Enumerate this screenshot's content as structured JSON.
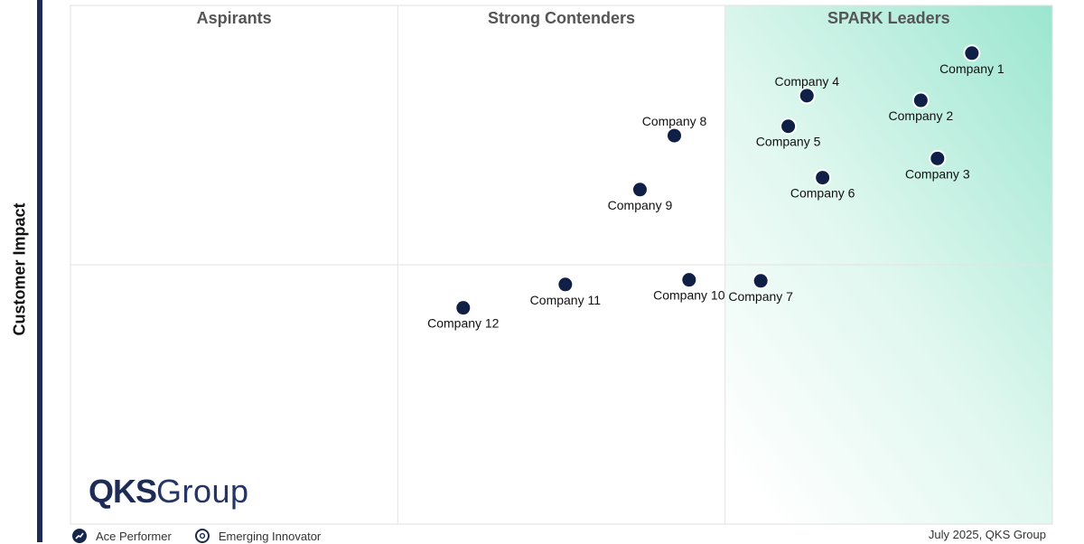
{
  "y_axis_label": "Customer Impact",
  "logo": {
    "bold": "QKS",
    "light": "Group"
  },
  "legend": [
    {
      "label": "Ace Performer",
      "icon": "ace-performer-icon"
    },
    {
      "label": "Emerging Innovator",
      "icon": "emerging-innovator-icon"
    }
  ],
  "footer": {
    "date_source": "July 2025, QKS Group"
  },
  "colors": {
    "accent": "#1d2b57",
    "point": "#0f1f45",
    "leaders_gradient": "#9be6cf"
  },
  "chart_data": {
    "type": "scatter",
    "title": "",
    "xlabel": "",
    "ylabel": "Customer Impact",
    "xlim": [
      0,
      100
    ],
    "ylim": [
      0,
      100
    ],
    "quadrants": [
      "Aspirants",
      "Strong Contenders",
      "SPARK Leaders"
    ],
    "points": [
      {
        "label": "Company 1",
        "x": 91.8,
        "y": 90.8,
        "label_pos": "below"
      },
      {
        "label": "Company 2",
        "x": 86.6,
        "y": 81.7,
        "label_pos": "below"
      },
      {
        "label": "Company 3",
        "x": 88.3,
        "y": 70.5,
        "label_pos": "below"
      },
      {
        "label": "Company 4",
        "x": 75.0,
        "y": 82.6,
        "label_pos": "above"
      },
      {
        "label": "Company 5",
        "x": 73.1,
        "y": 76.7,
        "label_pos": "below"
      },
      {
        "label": "Company 6",
        "x": 76.6,
        "y": 66.8,
        "label_pos": "below"
      },
      {
        "label": "Company 7",
        "x": 70.3,
        "y": 46.9,
        "label_pos": "below"
      },
      {
        "label": "Company 8",
        "x": 61.5,
        "y": 74.9,
        "label_pos": "above"
      },
      {
        "label": "Company 9",
        "x": 58.0,
        "y": 64.5,
        "label_pos": "below"
      },
      {
        "label": "Company 10",
        "x": 63.0,
        "y": 47.1,
        "label_pos": "below"
      },
      {
        "label": "Company 11",
        "x": 50.4,
        "y": 46.2,
        "label_pos": "below"
      },
      {
        "label": "Company 12",
        "x": 40.0,
        "y": 41.7,
        "label_pos": "below"
      }
    ]
  }
}
